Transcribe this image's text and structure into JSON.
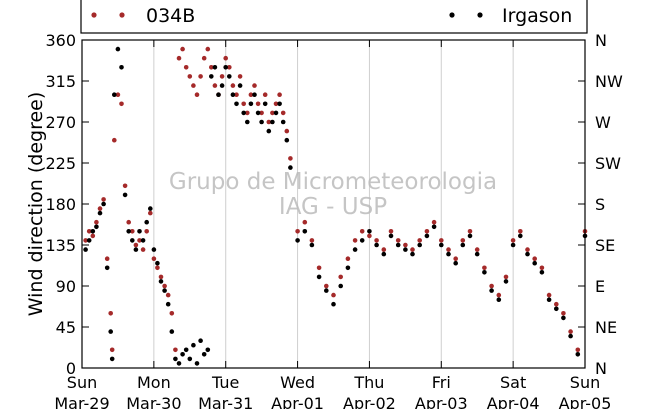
{
  "chart_data": {
    "type": "scatter",
    "title": "",
    "ylabel": "Wind direction (degree)",
    "xlabel": "",
    "ylim": [
      0,
      360
    ],
    "xlim": [
      0,
      7
    ],
    "y_ticks": [
      0,
      45,
      90,
      135,
      180,
      225,
      270,
      315,
      360
    ],
    "right_ticks": [
      {
        "value": 0,
        "label": "N"
      },
      {
        "value": 45,
        "label": "NE"
      },
      {
        "value": 90,
        "label": "E"
      },
      {
        "value": 135,
        "label": "SE"
      },
      {
        "value": 180,
        "label": "S"
      },
      {
        "value": 225,
        "label": "SW"
      },
      {
        "value": 270,
        "label": "W"
      },
      {
        "value": 315,
        "label": "NW"
      },
      {
        "value": 360,
        "label": "N"
      }
    ],
    "x_ticks": [
      {
        "value": 0,
        "day": "Sun",
        "date": "Mar-29"
      },
      {
        "value": 1,
        "day": "Mon",
        "date": "Mar-30"
      },
      {
        "value": 2,
        "day": "Tue",
        "date": "Mar-31"
      },
      {
        "value": 3,
        "day": "Wed",
        "date": "Apr-01"
      },
      {
        "value": 4,
        "day": "Thu",
        "date": "Apr-02"
      },
      {
        "value": 5,
        "day": "Fri",
        "date": "Apr-03"
      },
      {
        "value": 6,
        "day": "Sat",
        "date": "Apr-04"
      },
      {
        "value": 7,
        "day": "Sun",
        "date": "Apr-05"
      }
    ],
    "grid": "vertical",
    "legend_position": "top",
    "watermark": [
      "Grupo de Micrometeorologia",
      "IAG - USP"
    ],
    "series": [
      {
        "name": "034B",
        "color": "#a52a2a",
        "x": [
          0.05,
          0.1,
          0.15,
          0.2,
          0.25,
          0.3,
          0.35,
          0.4,
          0.42,
          0.45,
          0.5,
          0.55,
          0.6,
          0.65,
          0.7,
          0.75,
          0.8,
          0.85,
          0.9,
          0.95,
          1.0,
          1.05,
          1.1,
          1.15,
          1.2,
          1.25,
          1.3,
          1.35,
          1.4,
          1.45,
          1.5,
          1.55,
          1.6,
          1.65,
          1.7,
          1.75,
          1.8,
          1.85,
          1.9,
          1.95,
          2.0,
          2.05,
          2.1,
          2.15,
          2.2,
          2.25,
          2.3,
          2.35,
          2.4,
          2.45,
          2.5,
          2.55,
          2.6,
          2.65,
          2.7,
          2.75,
          2.8,
          2.85,
          2.9,
          3.0,
          3.1,
          3.2,
          3.3,
          3.4,
          3.5,
          3.6,
          3.7,
          3.8,
          3.9,
          4.0,
          4.1,
          4.2,
          4.3,
          4.4,
          4.5,
          4.6,
          4.7,
          4.8,
          4.9,
          5.0,
          5.1,
          5.2,
          5.3,
          5.4,
          5.5,
          5.6,
          5.7,
          5.8,
          5.9,
          6.0,
          6.1,
          6.2,
          6.3,
          6.4,
          6.5,
          6.6,
          6.7,
          6.8,
          6.9,
          7.0
        ],
        "y": [
          140,
          150,
          145,
          160,
          175,
          185,
          120,
          60,
          20,
          250,
          300,
          290,
          200,
          160,
          150,
          135,
          140,
          130,
          150,
          170,
          120,
          110,
          100,
          90,
          80,
          60,
          20,
          340,
          350,
          330,
          320,
          310,
          300,
          320,
          340,
          350,
          330,
          310,
          300,
          320,
          340,
          330,
          310,
          300,
          320,
          290,
          280,
          300,
          310,
          290,
          280,
          300,
          270,
          280,
          290,
          300,
          280,
          260,
          230,
          150,
          160,
          140,
          110,
          90,
          80,
          100,
          120,
          140,
          150,
          145,
          140,
          130,
          150,
          140,
          135,
          130,
          140,
          150,
          160,
          140,
          130,
          120,
          140,
          150,
          130,
          110,
          90,
          80,
          100,
          140,
          150,
          130,
          120,
          110,
          80,
          70,
          60,
          40,
          20,
          150
        ],
        "sizes": 5
      },
      {
        "name": "Irgason",
        "color": "#000000",
        "x": [
          0.05,
          0.1,
          0.15,
          0.2,
          0.25,
          0.3,
          0.35,
          0.4,
          0.42,
          0.45,
          0.5,
          0.55,
          0.6,
          0.65,
          0.7,
          0.75,
          0.8,
          0.85,
          0.9,
          0.95,
          1.0,
          1.05,
          1.1,
          1.15,
          1.2,
          1.25,
          1.3,
          1.35,
          1.4,
          1.45,
          1.5,
          1.55,
          1.6,
          1.65,
          1.7,
          1.75,
          1.8,
          1.85,
          1.9,
          1.95,
          2.0,
          2.05,
          2.1,
          2.15,
          2.2,
          2.25,
          2.3,
          2.35,
          2.4,
          2.45,
          2.5,
          2.55,
          2.6,
          2.65,
          2.7,
          2.75,
          2.8,
          2.85,
          2.9,
          3.0,
          3.1,
          3.2,
          3.3,
          3.4,
          3.5,
          3.6,
          3.7,
          3.8,
          3.9,
          4.0,
          4.1,
          4.2,
          4.3,
          4.4,
          4.5,
          4.6,
          4.7,
          4.8,
          4.9,
          5.0,
          5.1,
          5.2,
          5.3,
          5.4,
          5.5,
          5.6,
          5.7,
          5.8,
          5.9,
          6.0,
          6.1,
          6.2,
          6.3,
          6.4,
          6.5,
          6.6,
          6.7,
          6.8,
          6.9,
          7.0
        ],
        "y": [
          130,
          140,
          150,
          155,
          170,
          180,
          110,
          40,
          10,
          300,
          350,
          330,
          190,
          150,
          140,
          130,
          150,
          140,
          160,
          175,
          130,
          115,
          95,
          85,
          70,
          40,
          10,
          5,
          15,
          20,
          10,
          25,
          5,
          30,
          15,
          20,
          320,
          330,
          300,
          310,
          330,
          320,
          300,
          290,
          310,
          280,
          270,
          290,
          300,
          280,
          270,
          290,
          260,
          270,
          280,
          290,
          270,
          250,
          220,
          140,
          150,
          135,
          100,
          85,
          70,
          90,
          110,
          130,
          140,
          150,
          135,
          125,
          145,
          135,
          130,
          125,
          135,
          145,
          155,
          135,
          125,
          115,
          135,
          145,
          125,
          105,
          85,
          75,
          95,
          135,
          145,
          125,
          115,
          105,
          75,
          65,
          55,
          35,
          15,
          145
        ],
        "sizes": 5
      }
    ]
  }
}
